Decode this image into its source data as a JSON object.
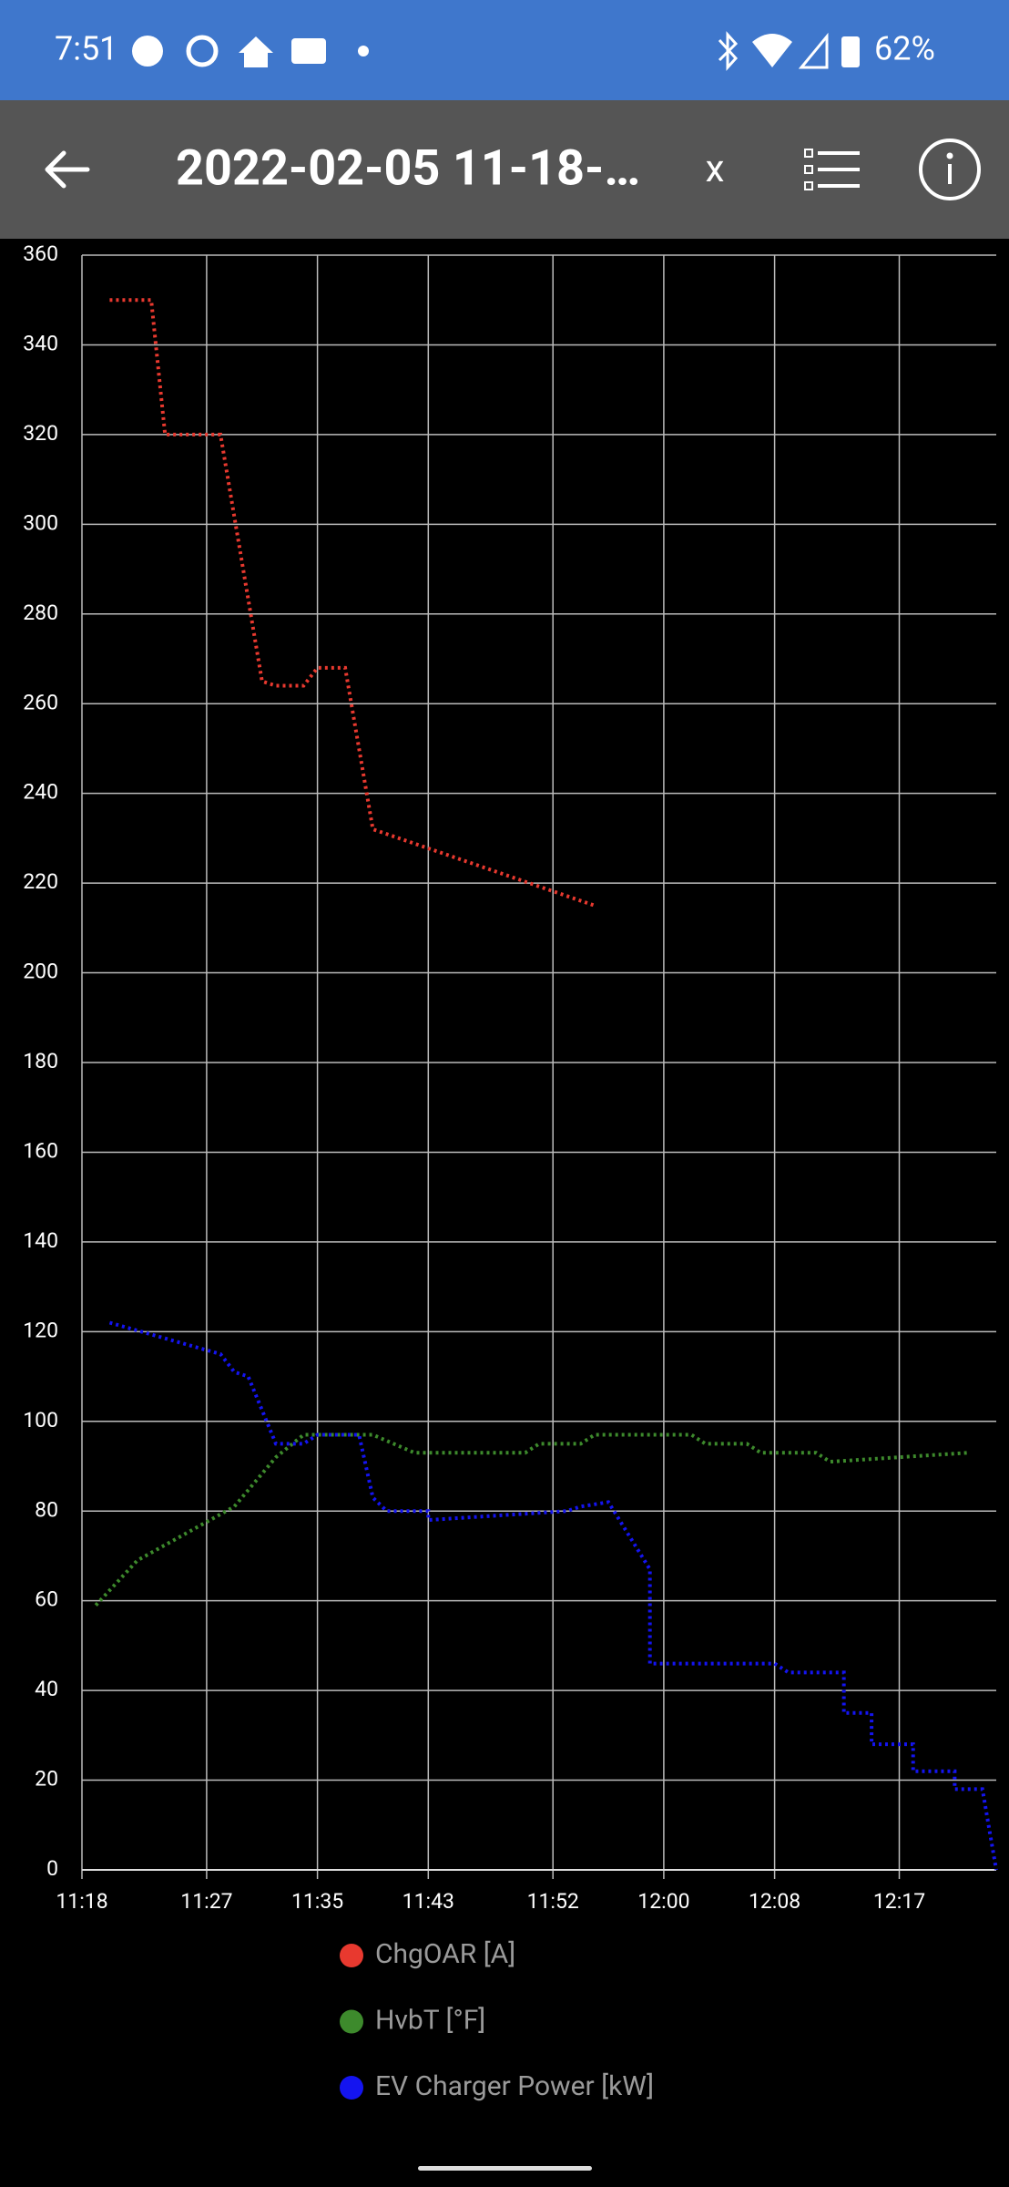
{
  "status_bar": {
    "time": "7:51",
    "battery": "62%"
  },
  "app_bar": {
    "title": "2022-02-05 11-18-…",
    "close": "x"
  },
  "chart_data": {
    "type": "line",
    "xlim": [
      "11:18",
      "12:24"
    ],
    "xticks": [
      "11:18",
      "11:27",
      "11:35",
      "11:43",
      "11:52",
      "12:00",
      "12:08",
      "12:17"
    ],
    "ylim": [
      0,
      360
    ],
    "yticks": [
      0,
      20,
      40,
      60,
      80,
      100,
      120,
      140,
      160,
      180,
      200,
      220,
      240,
      260,
      280,
      300,
      320,
      340,
      360
    ],
    "grid": true,
    "series": [
      {
        "name": "ChgOAR [A]",
        "color": "#e8392f",
        "x": [
          "11:20",
          "11:23",
          "11:24",
          "11:28",
          "11:31",
          "11:32",
          "11:34",
          "11:35",
          "11:37",
          "11:39",
          "11:55"
        ],
        "values": [
          350,
          350,
          320,
          320,
          265,
          264,
          264,
          268,
          268,
          232,
          215
        ]
      },
      {
        "name": "HvbT [°F]",
        "color": "#3d8a2c",
        "x": [
          "11:19",
          "11:22",
          "11:29",
          "11:32",
          "11:34",
          "11:39",
          "11:42",
          "11:50",
          "11:51",
          "11:54",
          "11:55",
          "12:02",
          "12:03",
          "12:06",
          "12:07",
          "12:11",
          "12:12",
          "12:22"
        ],
        "values": [
          59,
          69,
          81,
          92,
          97,
          97,
          93,
          93,
          95,
          95,
          97,
          97,
          95,
          95,
          93,
          93,
          91,
          93
        ]
      },
      {
        "name": "EV Charger Power [kW]",
        "color": "#1414f0",
        "x": [
          "11:20",
          "11:28",
          "11:29",
          "11:30",
          "11:32",
          "11:34",
          "11:35",
          "11:38",
          "11:39",
          "11:40",
          "11:43",
          "11:43",
          "11:53",
          "11:54",
          "11:56",
          "11:59",
          "11:59",
          "12:08",
          "12:09",
          "12:13",
          "12:13",
          "12:15",
          "12:15",
          "12:18",
          "12:18",
          "12:21",
          "12:21",
          "12:23",
          "12:24"
        ],
        "values": [
          122,
          115,
          111,
          110,
          95,
          95,
          97,
          97,
          83,
          80,
          80,
          78,
          80,
          81,
          82,
          67,
          46,
          46,
          44,
          44,
          35,
          35,
          28,
          28,
          22,
          22,
          18,
          18,
          0
        ]
      }
    ]
  }
}
